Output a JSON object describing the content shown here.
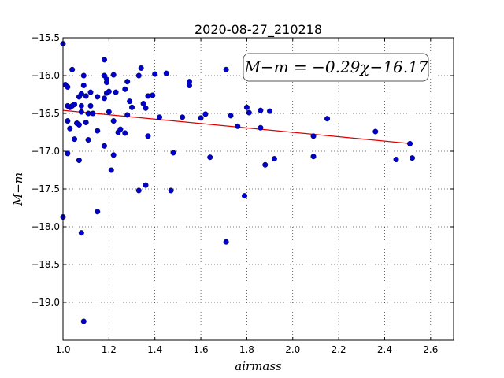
{
  "chart_data": {
    "type": "scatter",
    "title": "2020-08-27_210218",
    "xlabel": "airmass",
    "ylabel": "M−m",
    "xlim": [
      1.0,
      2.7
    ],
    "ylim": [
      -15.5,
      -19.5
    ],
    "y_inverted": true,
    "grid": true,
    "grid_style": "dotted",
    "x_ticks": [
      "1.0",
      "1.2",
      "1.4",
      "1.6",
      "1.8",
      "2.0",
      "2.2",
      "2.4",
      "2.6"
    ],
    "y_ticks": [
      "−15.5",
      "−16.0",
      "−16.5",
      "−17.0",
      "−17.5",
      "−18.0",
      "−18.5",
      "−19.0"
    ],
    "annotation": "M−m = −0.29χ−16.17",
    "fit": {
      "slope": -0.29,
      "intercept": -16.17,
      "x_range": [
        1.0,
        2.51
      ],
      "color": "#dd0000"
    },
    "point_color": "#0000cc",
    "points": [
      {
        "x": 1.0,
        "y": -15.58
      },
      {
        "x": 1.0,
        "y": -17.87
      },
      {
        "x": 1.01,
        "y": -16.12
      },
      {
        "x": 1.02,
        "y": -16.15
      },
      {
        "x": 1.02,
        "y": -16.4
      },
      {
        "x": 1.02,
        "y": -16.6
      },
      {
        "x": 1.02,
        "y": -17.03
      },
      {
        "x": 1.03,
        "y": -16.42
      },
      {
        "x": 1.03,
        "y": -16.7
      },
      {
        "x": 1.04,
        "y": -15.92
      },
      {
        "x": 1.04,
        "y": -16.4
      },
      {
        "x": 1.05,
        "y": -16.84
      },
      {
        "x": 1.05,
        "y": -16.38
      },
      {
        "x": 1.06,
        "y": -16.63
      },
      {
        "x": 1.07,
        "y": -16.28
      },
      {
        "x": 1.07,
        "y": -16.65
      },
      {
        "x": 1.07,
        "y": -17.12
      },
      {
        "x": 1.08,
        "y": -16.24
      },
      {
        "x": 1.08,
        "y": -16.4
      },
      {
        "x": 1.08,
        "y": -16.48
      },
      {
        "x": 1.08,
        "y": -18.08
      },
      {
        "x": 1.09,
        "y": -16.0
      },
      {
        "x": 1.09,
        "y": -16.13
      },
      {
        "x": 1.09,
        "y": -19.25
      },
      {
        "x": 1.1,
        "y": -16.27
      },
      {
        "x": 1.1,
        "y": -16.62
      },
      {
        "x": 1.11,
        "y": -16.5
      },
      {
        "x": 1.11,
        "y": -16.85
      },
      {
        "x": 1.12,
        "y": -16.22
      },
      {
        "x": 1.12,
        "y": -16.4
      },
      {
        "x": 1.13,
        "y": -16.5
      },
      {
        "x": 1.15,
        "y": -16.28
      },
      {
        "x": 1.15,
        "y": -16.73
      },
      {
        "x": 1.15,
        "y": -17.8
      },
      {
        "x": 1.18,
        "y": -15.79
      },
      {
        "x": 1.18,
        "y": -16.0
      },
      {
        "x": 1.18,
        "y": -16.3
      },
      {
        "x": 1.18,
        "y": -16.93
      },
      {
        "x": 1.19,
        "y": -16.05
      },
      {
        "x": 1.19,
        "y": -16.09
      },
      {
        "x": 1.19,
        "y": -16.23
      },
      {
        "x": 1.2,
        "y": -16.21
      },
      {
        "x": 1.2,
        "y": -16.48
      },
      {
        "x": 1.21,
        "y": -17.25
      },
      {
        "x": 1.22,
        "y": -15.99
      },
      {
        "x": 1.22,
        "y": -17.05
      },
      {
        "x": 1.22,
        "y": -16.6
      },
      {
        "x": 1.23,
        "y": -16.22
      },
      {
        "x": 1.24,
        "y": -16.75
      },
      {
        "x": 1.25,
        "y": -16.71
      },
      {
        "x": 1.27,
        "y": -16.76
      },
      {
        "x": 1.27,
        "y": -16.18
      },
      {
        "x": 1.28,
        "y": -16.08
      },
      {
        "x": 1.28,
        "y": -16.52
      },
      {
        "x": 1.29,
        "y": -16.34
      },
      {
        "x": 1.3,
        "y": -16.42
      },
      {
        "x": 1.33,
        "y": -16.0
      },
      {
        "x": 1.33,
        "y": -17.52
      },
      {
        "x": 1.34,
        "y": -15.9
      },
      {
        "x": 1.35,
        "y": -16.37
      },
      {
        "x": 1.36,
        "y": -16.43
      },
      {
        "x": 1.36,
        "y": -17.45
      },
      {
        "x": 1.37,
        "y": -16.27
      },
      {
        "x": 1.37,
        "y": -16.8
      },
      {
        "x": 1.39,
        "y": -16.26
      },
      {
        "x": 1.4,
        "y": -15.98
      },
      {
        "x": 1.42,
        "y": -16.55
      },
      {
        "x": 1.45,
        "y": -15.97
      },
      {
        "x": 1.47,
        "y": -17.52
      },
      {
        "x": 1.48,
        "y": -17.02
      },
      {
        "x": 1.52,
        "y": -16.55
      },
      {
        "x": 1.55,
        "y": -16.08
      },
      {
        "x": 1.55,
        "y": -16.13
      },
      {
        "x": 1.6,
        "y": -16.56
      },
      {
        "x": 1.62,
        "y": -16.51
      },
      {
        "x": 1.64,
        "y": -17.08
      },
      {
        "x": 1.71,
        "y": -15.92
      },
      {
        "x": 1.71,
        "y": -18.2
      },
      {
        "x": 1.73,
        "y": -16.53
      },
      {
        "x": 1.76,
        "y": -16.67
      },
      {
        "x": 1.79,
        "y": -17.59
      },
      {
        "x": 1.8,
        "y": -16.42
      },
      {
        "x": 1.81,
        "y": -16.49
      },
      {
        "x": 1.86,
        "y": -16.46
      },
      {
        "x": 1.86,
        "y": -16.69
      },
      {
        "x": 1.88,
        "y": -17.18
      },
      {
        "x": 1.9,
        "y": -16.47
      },
      {
        "x": 1.92,
        "y": -17.1
      },
      {
        "x": 2.09,
        "y": -17.07
      },
      {
        "x": 2.09,
        "y": -16.8
      },
      {
        "x": 2.15,
        "y": -16.57
      },
      {
        "x": 2.36,
        "y": -16.74
      },
      {
        "x": 2.45,
        "y": -17.11
      },
      {
        "x": 2.51,
        "y": -16.9
      },
      {
        "x": 2.52,
        "y": -17.09
      }
    ]
  }
}
